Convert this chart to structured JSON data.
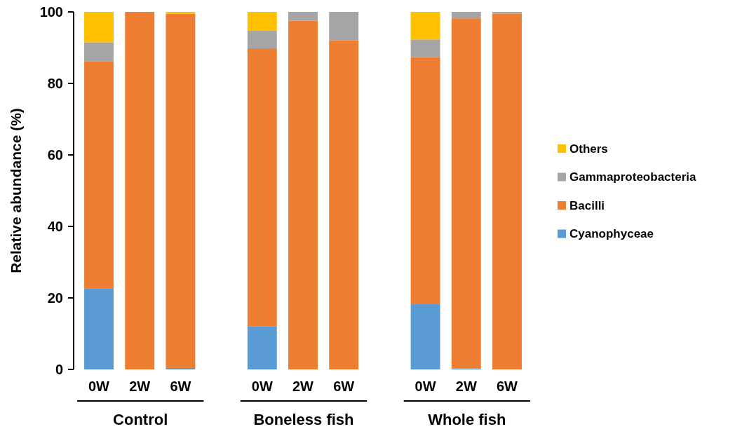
{
  "chart_data": {
    "type": "bar",
    "stacked": true,
    "ylabel": "Relative abundance (%)",
    "categories": [
      "0W",
      "2W",
      "6W",
      null,
      "0W",
      "2W",
      "6W",
      null,
      "0W",
      "2W",
      "6W"
    ],
    "series": [
      {
        "name": "Cyanophyceae",
        "color": "#5b9bd5",
        "values": [
          22.7,
          0,
          0.4,
          null,
          12.1,
          0,
          0,
          null,
          18.4,
          0.3,
          0
        ]
      },
      {
        "name": "Bacilli",
        "color": "#ed7d31",
        "values": [
          63.4,
          100,
          99.1,
          null,
          77.7,
          97.5,
          92,
          null,
          68.9,
          97.9,
          99.5
        ]
      },
      {
        "name": "Gammaproteobacteria",
        "color": "#a5a5a5",
        "values": [
          5.4,
          0,
          0,
          null,
          4.9,
          2.5,
          8,
          null,
          5,
          1.8,
          0.5
        ]
      },
      {
        "name": "Others",
        "color": "#ffc000",
        "values": [
          8.5,
          0,
          0.5,
          null,
          5.3,
          0,
          0,
          null,
          7.7,
          0,
          0
        ]
      }
    ],
    "ylim": [
      0,
      100
    ],
    "yticks": [
      0,
      20,
      40,
      60,
      80,
      100
    ],
    "grid": false,
    "legend": "right",
    "annotations": [
      "Control",
      "Boneless fish",
      "Whole fish"
    ]
  }
}
